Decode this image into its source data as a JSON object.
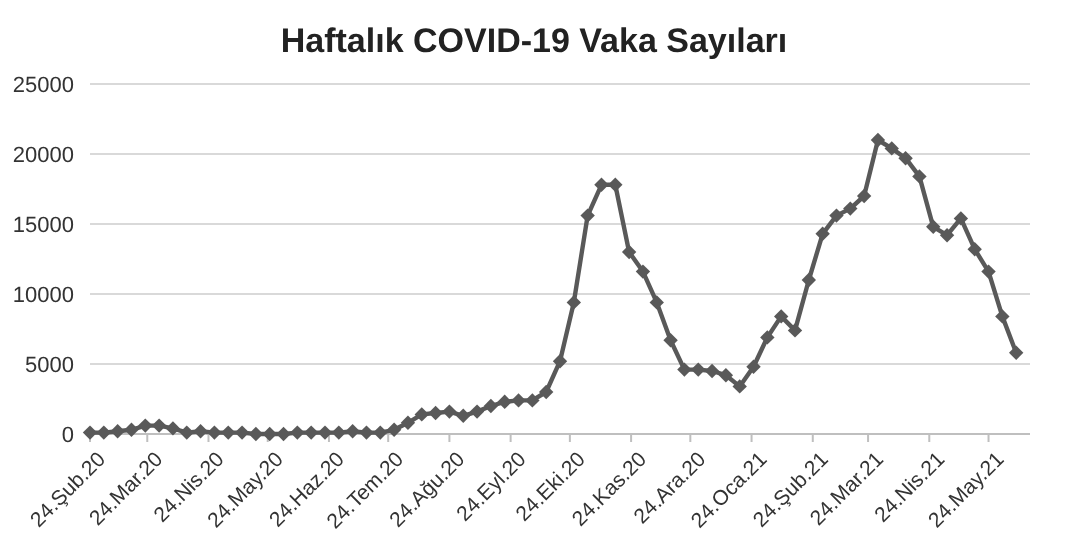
{
  "chart_data": {
    "type": "line",
    "title": "Haftalık COVID-19 Vaka Sayıları",
    "x": [
      "2020-02-24",
      "2020-03-02",
      "2020-03-09",
      "2020-03-16",
      "2020-03-23",
      "2020-03-30",
      "2020-04-06",
      "2020-04-13",
      "2020-04-20",
      "2020-04-27",
      "2020-05-04",
      "2020-05-11",
      "2020-05-18",
      "2020-05-25",
      "2020-06-01",
      "2020-06-08",
      "2020-06-15",
      "2020-06-22",
      "2020-06-29",
      "2020-07-06",
      "2020-07-13",
      "2020-07-20",
      "2020-07-27",
      "2020-08-03",
      "2020-08-10",
      "2020-08-17",
      "2020-08-24",
      "2020-08-31",
      "2020-09-07",
      "2020-09-14",
      "2020-09-21",
      "2020-09-28",
      "2020-10-05",
      "2020-10-12",
      "2020-10-19",
      "2020-10-26",
      "2020-11-02",
      "2020-11-09",
      "2020-11-16",
      "2020-11-23",
      "2020-11-30",
      "2020-12-07",
      "2020-12-14",
      "2020-12-21",
      "2020-12-28",
      "2021-01-04",
      "2021-01-11",
      "2021-01-18",
      "2021-01-25",
      "2021-02-01",
      "2021-02-08",
      "2021-02-15",
      "2021-02-22",
      "2021-03-01",
      "2021-03-08",
      "2021-03-15",
      "2021-03-22",
      "2021-03-29",
      "2021-04-05",
      "2021-04-12",
      "2021-04-19",
      "2021-04-26",
      "2021-05-03",
      "2021-05-10",
      "2021-05-17",
      "2021-05-24",
      "2021-05-31",
      "2021-06-07"
    ],
    "series": [
      {
        "color": "#595959",
        "values": [
          100,
          100,
          200,
          300,
          600,
          600,
          400,
          100,
          200,
          100,
          100,
          100,
          0,
          0,
          0,
          100,
          100,
          100,
          100,
          200,
          100,
          100,
          300,
          800,
          1400,
          1500,
          1600,
          1300,
          1600,
          2000,
          2300,
          2400,
          2400,
          3000,
          5200,
          9400,
          15600,
          17800,
          17800,
          13000,
          11600,
          9400,
          6700,
          4600,
          4600,
          4500,
          4200,
          3400,
          4800,
          6900,
          8400,
          7400,
          11000,
          14300,
          15600,
          16100,
          17000,
          21000,
          20400,
          19700,
          18400,
          14800,
          14200,
          15400,
          13200,
          11600,
          8400,
          5800
        ]
      }
    ],
    "xlim": [
      "2020-02-24",
      "2021-06-14"
    ],
    "xticks": [
      {
        "value": "2020-02-24",
        "label": "24.Şub.20"
      },
      {
        "value": "2020-03-24",
        "label": "24.Mar.20"
      },
      {
        "value": "2020-04-24",
        "label": "24.Nis.20"
      },
      {
        "value": "2020-05-24",
        "label": "24.May.20"
      },
      {
        "value": "2020-06-24",
        "label": "24.Haz.20"
      },
      {
        "value": "2020-07-24",
        "label": "24.Tem.20"
      },
      {
        "value": "2020-08-24",
        "label": "24.Ağu.20"
      },
      {
        "value": "2020-09-24",
        "label": "24.Eyl.20"
      },
      {
        "value": "2020-10-24",
        "label": "24.Eki.20"
      },
      {
        "value": "2020-11-24",
        "label": "24.Kas.20"
      },
      {
        "value": "2020-12-24",
        "label": "24.Ara.20"
      },
      {
        "value": "2021-01-24",
        "label": "24.Oca.21"
      },
      {
        "value": "2021-02-24",
        "label": "24.Şub.21"
      },
      {
        "value": "2021-03-24",
        "label": "24.Mar.21"
      },
      {
        "value": "2021-04-24",
        "label": "24.Nis.21"
      },
      {
        "value": "2021-05-24",
        "label": "24.May.21"
      }
    ],
    "ylim": [
      0,
      25000
    ],
    "yticks": [
      0,
      5000,
      10000,
      15000,
      20000,
      25000
    ],
    "grid": "y",
    "marker": "diamond",
    "line_style": "solid"
  }
}
